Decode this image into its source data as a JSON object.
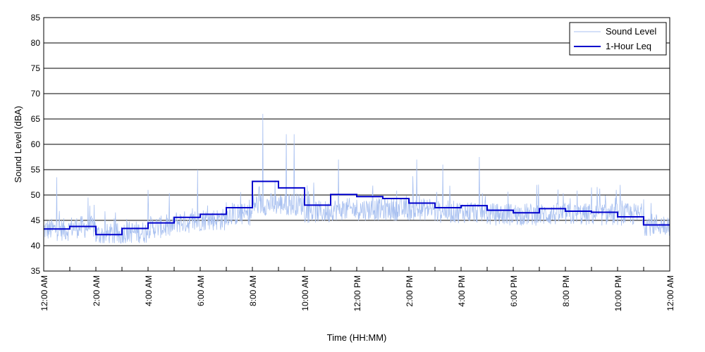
{
  "chart_data": {
    "type": "line",
    "title": "",
    "xlabel": "Time (HH:MM)",
    "ylabel": "Sound Level (dBA)",
    "xlim": [
      0,
      24
    ],
    "ylim": [
      35,
      85
    ],
    "y_ticks": [
      35,
      40,
      45,
      50,
      55,
      60,
      65,
      70,
      75,
      80,
      85
    ],
    "x_ticks": [
      {
        "hour": 0,
        "label": "12:00 AM"
      },
      {
        "hour": 2,
        "label": "2:00 AM"
      },
      {
        "hour": 4,
        "label": "4:00 AM"
      },
      {
        "hour": 6,
        "label": "6:00 AM"
      },
      {
        "hour": 8,
        "label": "8:00 AM"
      },
      {
        "hour": 10,
        "label": "10:00 AM"
      },
      {
        "hour": 12,
        "label": "12:00 PM"
      },
      {
        "hour": 14,
        "label": "2:00 PM"
      },
      {
        "hour": 16,
        "label": "4:00 PM"
      },
      {
        "hour": 18,
        "label": "6:00 PM"
      },
      {
        "hour": 20,
        "label": "8:00 PM"
      },
      {
        "hour": 22,
        "label": "10:00 PM"
      },
      {
        "hour": 24,
        "label": "12:00 AM"
      }
    ],
    "grid": "horizontal",
    "legend_position": "top-right",
    "series": [
      {
        "name": "Sound Level",
        "color": "#a8c0f0",
        "style": "thin-noisy",
        "hourly_baseline": [
          42.5,
          43,
          41.5,
          42,
          43,
          44,
          44.5,
          45.5,
          47.5,
          47.5,
          46,
          46.5,
          46.5,
          46.5,
          46.5,
          46,
          46,
          45.5,
          45.5,
          45.5,
          45.5,
          45.5,
          45.5,
          43.5
        ],
        "peaks": [
          {
            "hour": 0.5,
            "value": 53.5
          },
          {
            "hour": 1.7,
            "value": 49.5
          },
          {
            "hour": 4.0,
            "value": 51
          },
          {
            "hour": 5.9,
            "value": 55
          },
          {
            "hour": 8.4,
            "value": 66
          },
          {
            "hour": 9.3,
            "value": 62
          },
          {
            "hour": 9.6,
            "value": 62
          },
          {
            "hour": 11.3,
            "value": 57
          },
          {
            "hour": 14.3,
            "value": 57
          },
          {
            "hour": 15.3,
            "value": 56
          },
          {
            "hour": 16.7,
            "value": 57.5
          },
          {
            "hour": 18.9,
            "value": 52
          },
          {
            "hour": 21.0,
            "value": 51.5
          },
          {
            "hour": 22.1,
            "value": 52
          }
        ]
      },
      {
        "name": "1-Hour Leq",
        "color": "#0000cc",
        "style": "step",
        "x": [
          0,
          1,
          2,
          3,
          4,
          5,
          6,
          7,
          8,
          9,
          10,
          11,
          12,
          13,
          14,
          15,
          16,
          17,
          18,
          19,
          20,
          21,
          22,
          23
        ],
        "values": [
          43.3,
          43.8,
          42.2,
          43.4,
          44.5,
          45.6,
          46.2,
          47.5,
          52.7,
          51.4,
          48.0,
          50.1,
          49.7,
          49.3,
          48.4,
          47.5,
          47.9,
          47.0,
          46.5,
          47.3,
          46.8,
          46.6,
          45.7,
          44.1
        ]
      }
    ]
  }
}
